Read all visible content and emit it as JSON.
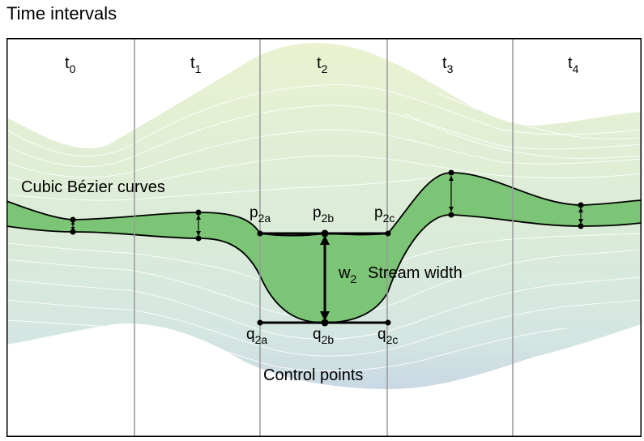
{
  "title": "Time intervals",
  "intervals": [
    {
      "base": "t",
      "sub": "0"
    },
    {
      "base": "t",
      "sub": "1"
    },
    {
      "base": "t",
      "sub": "2"
    },
    {
      "base": "t",
      "sub": "3"
    },
    {
      "base": "t",
      "sub": "4"
    }
  ],
  "labels": {
    "curves": "Cubic Bézier curves",
    "stream_width": "Stream width",
    "control_points": "Control points"
  },
  "width_symbol": {
    "base": "w",
    "sub": "2"
  },
  "control_point_labels": {
    "p2a": {
      "base": "p",
      "sub": "2a"
    },
    "p2b": {
      "base": "p",
      "sub": "2b"
    },
    "p2c": {
      "base": "p",
      "sub": "2c"
    },
    "q2a": {
      "base": "q",
      "sub": "2a"
    },
    "q2b": {
      "base": "q",
      "sub": "2b"
    },
    "q2c": {
      "base": "q",
      "sub": "2c"
    }
  },
  "colors": {
    "highlight_stream": "#7cc476",
    "background_stream_top": "#e6efcf",
    "background_stream_mid": "#dcebd6",
    "background_stream_bottom": "#ccdde4",
    "divider": "#9a9a9a",
    "outline": "#000000"
  }
}
